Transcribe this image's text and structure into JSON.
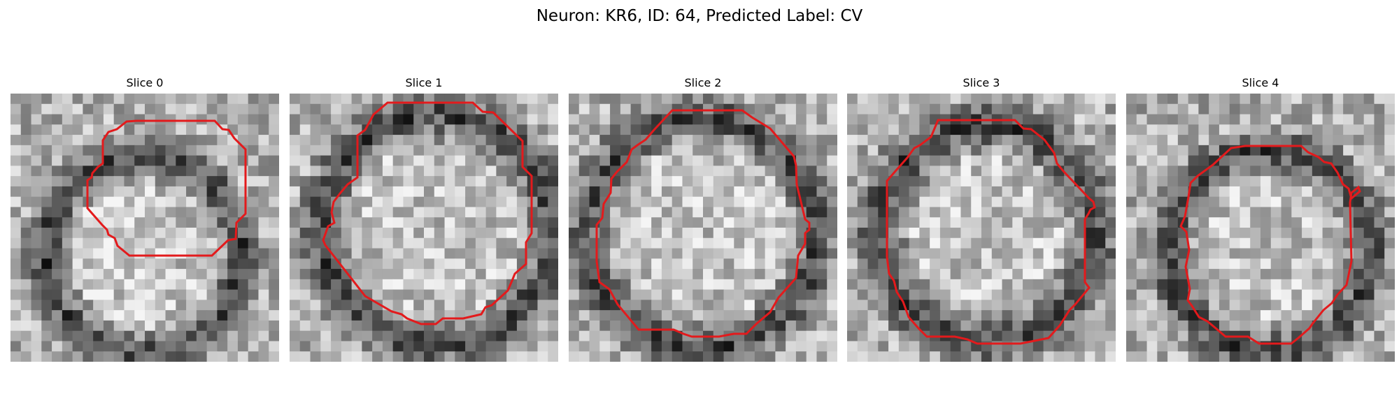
{
  "figure": {
    "title": "Neuron: KR6, ID: 64, Predicted Label: CV"
  },
  "colors": {
    "contour": "#e31a1c"
  },
  "panels": [
    {
      "title": "Slice 0"
    },
    {
      "title": "Slice 1"
    },
    {
      "title": "Slice 2"
    },
    {
      "title": "Slice 3"
    },
    {
      "title": "Slice 4"
    }
  ]
}
